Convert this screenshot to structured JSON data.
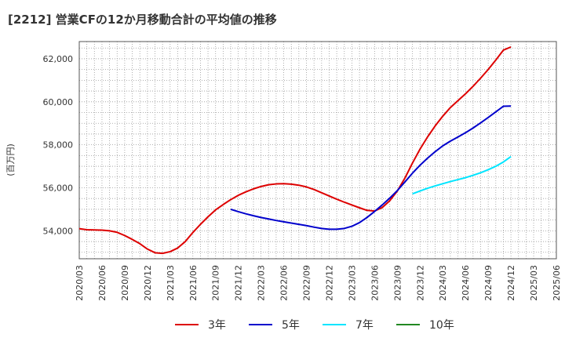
{
  "chart_data": {
    "type": "line",
    "title": "[2212]  営業CFの12か月移動合計の平均値の推移",
    "ylabel": "(百万円)",
    "xlabel": "",
    "ylim": [
      52700,
      62800
    ],
    "yticks": [
      54000,
      56000,
      58000,
      60000,
      62000
    ],
    "ytick_labels": [
      "54,000",
      "56,000",
      "58,000",
      "60,000",
      "62,000"
    ],
    "xlim": [
      "2020-03",
      "2025-06"
    ],
    "xtick_labels": [
      "2020/03",
      "2020/06",
      "2020/09",
      "2020/12",
      "2021/03",
      "2021/06",
      "2021/09",
      "2021/12",
      "2022/03",
      "2022/06",
      "2022/09",
      "2022/12",
      "2023/03",
      "2023/06",
      "2023/09",
      "2023/12",
      "2024/03",
      "2024/06",
      "2024/09",
      "2024/12",
      "2025/03",
      "2025/06"
    ],
    "grid": true,
    "legend_position": "bottom",
    "series": [
      {
        "name": "3年",
        "color": "#dd0000",
        "points": [
          [
            "2020-03",
            54100
          ],
          [
            "2020-04",
            54050
          ],
          [
            "2020-05",
            54040
          ],
          [
            "2020-06",
            54030
          ],
          [
            "2020-07",
            54000
          ],
          [
            "2020-08",
            53930
          ],
          [
            "2020-09",
            53780
          ],
          [
            "2020-10",
            53600
          ],
          [
            "2020-11",
            53400
          ],
          [
            "2020-12",
            53150
          ],
          [
            "2021-01",
            52980
          ],
          [
            "2021-02",
            52950
          ],
          [
            "2021-03",
            53030
          ],
          [
            "2021-04",
            53200
          ],
          [
            "2021-05",
            53500
          ],
          [
            "2021-06",
            53920
          ],
          [
            "2021-07",
            54300
          ],
          [
            "2021-08",
            54650
          ],
          [
            "2021-09",
            54970
          ],
          [
            "2021-10",
            55220
          ],
          [
            "2021-11",
            55450
          ],
          [
            "2021-12",
            55650
          ],
          [
            "2022-01",
            55810
          ],
          [
            "2022-02",
            55950
          ],
          [
            "2022-03",
            56060
          ],
          [
            "2022-04",
            56140
          ],
          [
            "2022-05",
            56180
          ],
          [
            "2022-06",
            56190
          ],
          [
            "2022-07",
            56170
          ],
          [
            "2022-08",
            56120
          ],
          [
            "2022-09",
            56040
          ],
          [
            "2022-10",
            55920
          ],
          [
            "2022-11",
            55770
          ],
          [
            "2022-12",
            55620
          ],
          [
            "2022-13",
            55470
          ],
          [
            "2023-02",
            55330
          ],
          [
            "2023-03",
            55200
          ],
          [
            "2023-04",
            55070
          ],
          [
            "2023-05",
            54950
          ],
          [
            "2023-06",
            54920
          ],
          [
            "2023-07",
            55080
          ],
          [
            "2023-08",
            55400
          ],
          [
            "2023-09",
            55850
          ],
          [
            "2023-10",
            56450
          ],
          [
            "2023-11",
            57150
          ],
          [
            "2023-12",
            57800
          ],
          [
            "2024-01",
            58370
          ],
          [
            "2024-02",
            58880
          ],
          [
            "2024-03",
            59330
          ],
          [
            "2024-04",
            59730
          ],
          [
            "2024-05",
            60050
          ],
          [
            "2024-06",
            60370
          ],
          [
            "2024-07",
            60720
          ],
          [
            "2024-08",
            61100
          ],
          [
            "2024-09",
            61500
          ],
          [
            "2024-10",
            61940
          ],
          [
            "2024-11",
            62400
          ],
          [
            "2024-12",
            62550
          ]
        ]
      },
      {
        "name": "5年",
        "color": "#0000cc",
        "points": [
          [
            "2021-11",
            55000
          ],
          [
            "2021-12",
            54890
          ],
          [
            "2022-01",
            54790
          ],
          [
            "2022-02",
            54700
          ],
          [
            "2022-03",
            54620
          ],
          [
            "2022-04",
            54550
          ],
          [
            "2022-05",
            54480
          ],
          [
            "2022-06",
            54420
          ],
          [
            "2022-07",
            54360
          ],
          [
            "2022-08",
            54300
          ],
          [
            "2022-09",
            54240
          ],
          [
            "2022-10",
            54170
          ],
          [
            "2022-11",
            54110
          ],
          [
            "2022-12",
            54070
          ],
          [
            "2023-01",
            54070
          ],
          [
            "2023-02",
            54110
          ],
          [
            "2023-03",
            54210
          ],
          [
            "2023-04",
            54380
          ],
          [
            "2023-05",
            54620
          ],
          [
            "2023-06",
            54900
          ],
          [
            "2023-07",
            55200
          ],
          [
            "2023-08",
            55520
          ],
          [
            "2023-09",
            55870
          ],
          [
            "2023-10",
            56270
          ],
          [
            "2023-11",
            56680
          ],
          [
            "2023-12",
            57050
          ],
          [
            "2024-01",
            57380
          ],
          [
            "2024-02",
            57680
          ],
          [
            "2024-03",
            57950
          ],
          [
            "2024-04",
            58170
          ],
          [
            "2024-05",
            58360
          ],
          [
            "2024-06",
            58560
          ],
          [
            "2024-07",
            58780
          ],
          [
            "2024-08",
            59020
          ],
          [
            "2024-09",
            59270
          ],
          [
            "2024-10",
            59530
          ],
          [
            "2024-11",
            59790
          ],
          [
            "2024-12",
            59800
          ]
        ]
      },
      {
        "name": "7年",
        "color": "#00e5ff",
        "points": [
          [
            "2023-11",
            55720
          ],
          [
            "2023-12",
            55850
          ],
          [
            "2024-01",
            55980
          ],
          [
            "2024-02",
            56090
          ],
          [
            "2024-03",
            56190
          ],
          [
            "2024-04",
            56290
          ],
          [
            "2024-05",
            56380
          ],
          [
            "2024-06",
            56470
          ],
          [
            "2024-07",
            56580
          ],
          [
            "2024-08",
            56700
          ],
          [
            "2024-09",
            56840
          ],
          [
            "2024-10",
            57000
          ],
          [
            "2024-11",
            57200
          ],
          [
            "2024-12",
            57450
          ]
        ]
      },
      {
        "name": "10年",
        "color": "#228822",
        "points": []
      }
    ]
  }
}
